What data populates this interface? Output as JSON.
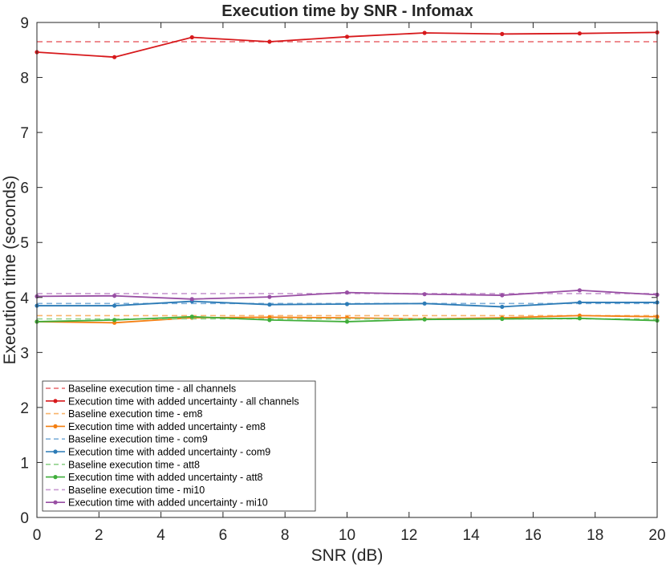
{
  "chart_data": {
    "type": "line",
    "title": "Execution time by SNR - Infomax",
    "xlabel": "SNR (dB)",
    "ylabel": "Execution time (seconds)",
    "xlim": [
      0,
      20
    ],
    "ylim": [
      0,
      9
    ],
    "xticks": [
      0,
      2,
      4,
      6,
      8,
      10,
      12,
      14,
      16,
      18,
      20
    ],
    "yticks": [
      0,
      1,
      2,
      3,
      4,
      5,
      6,
      7,
      8,
      9
    ],
    "x": [
      0,
      2.5,
      5,
      7.5,
      10,
      12.5,
      15,
      17.5,
      20
    ],
    "legend_position": "bottom-left",
    "series": [
      {
        "name": "Baseline execution time - all channels",
        "style": "dashed",
        "color": "#e8676b",
        "values": [
          8.65,
          8.65,
          8.65,
          8.65,
          8.65,
          8.65,
          8.65,
          8.65,
          8.65
        ]
      },
      {
        "name": "Execution time with added uncertainty - all channels",
        "style": "solid",
        "color": "#d7191c",
        "values": [
          8.46,
          8.37,
          8.73,
          8.65,
          8.74,
          8.81,
          8.79,
          8.8,
          8.82
        ]
      },
      {
        "name": "Baseline execution time - em8",
        "style": "dashed",
        "color": "#f9b46a",
        "values": [
          3.67,
          3.67,
          3.67,
          3.67,
          3.67,
          3.67,
          3.67,
          3.67,
          3.67
        ]
      },
      {
        "name": "Execution time with added uncertainty - em8",
        "style": "solid",
        "color": "#f47f11",
        "values": [
          3.56,
          3.54,
          3.63,
          3.64,
          3.63,
          3.61,
          3.63,
          3.67,
          3.65
        ]
      },
      {
        "name": "Baseline execution time - com9",
        "style": "dashed",
        "color": "#7fb0da",
        "values": [
          3.89,
          3.89,
          3.89,
          3.89,
          3.89,
          3.89,
          3.89,
          3.89,
          3.89
        ]
      },
      {
        "name": "Execution time with added uncertainty - com9",
        "style": "solid",
        "color": "#2c7bb6",
        "values": [
          3.85,
          3.85,
          3.93,
          3.87,
          3.88,
          3.89,
          3.83,
          3.91,
          3.91
        ]
      },
      {
        "name": "Baseline execution time - att8",
        "style": "dashed",
        "color": "#8fd18a",
        "values": [
          3.61,
          3.61,
          3.61,
          3.61,
          3.61,
          3.61,
          3.61,
          3.61,
          3.61
        ]
      },
      {
        "name": "Execution time with added uncertainty - att8",
        "style": "solid",
        "color": "#3fae3a",
        "values": [
          3.56,
          3.59,
          3.65,
          3.59,
          3.56,
          3.6,
          3.61,
          3.62,
          3.58
        ]
      },
      {
        "name": "Baseline execution time - mi10",
        "style": "dashed",
        "color": "#c89ad1",
        "values": [
          4.07,
          4.07,
          4.07,
          4.07,
          4.07,
          4.07,
          4.07,
          4.07,
          4.07
        ]
      },
      {
        "name": "Execution time with added uncertainty - mi10",
        "style": "solid",
        "color": "#984ea3",
        "values": [
          4.02,
          4.03,
          3.97,
          4.01,
          4.09,
          4.06,
          4.04,
          4.13,
          4.05
        ]
      }
    ]
  }
}
